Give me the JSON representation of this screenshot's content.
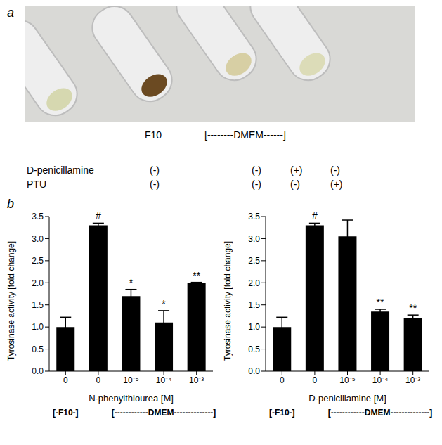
{
  "panel_a": {
    "label": "a",
    "medium_labels": [
      "F10",
      "[--------DMEM------]"
    ],
    "rows": [
      {
        "name": "D-penicillamine",
        "signs": [
          "(-)",
          "(-)",
          "(+)",
          "(-)"
        ]
      },
      {
        "name": "PTU",
        "signs": [
          "(-)",
          "(-)",
          "(-)",
          "(+)"
        ]
      }
    ]
  },
  "panel_b": {
    "label": "b"
  },
  "chart_data": [
    {
      "type": "bar",
      "y_label": "Tyrosinase activity [fold change]",
      "x_label": "N-phenylthiourea [M]",
      "medium_labels": [
        "[-F10-]",
        "[------------DMEM--------------]"
      ],
      "categories": [
        "0",
        "0",
        "10⁻⁵",
        "10⁻⁴",
        "10⁻³"
      ],
      "values": [
        1.0,
        3.3,
        1.7,
        1.1,
        2.0
      ],
      "errors": [
        0.22,
        0.05,
        0.15,
        0.27,
        0.01
      ],
      "annotations": [
        null,
        "#",
        "*",
        "*",
        "**"
      ],
      "color": "#000000",
      "ylim": [
        0,
        3.5
      ],
      "yticks": [
        {
          "value": 0,
          "label": "0.0"
        },
        {
          "value": 0.5,
          "label": "0.5"
        },
        {
          "value": 1,
          "label": "1.0"
        },
        {
          "value": 1.5,
          "label": "1.5"
        },
        {
          "value": 2,
          "label": "2.0"
        },
        {
          "value": 2.5,
          "label": "2.5"
        },
        {
          "value": 3,
          "label": "3.0"
        },
        {
          "value": 3.5,
          "label": "3.5"
        }
      ],
      "grid": false
    },
    {
      "type": "bar",
      "y_label": "Tyrosinase activity [fold change]",
      "x_label": "D-penicillamine [M]",
      "medium_labels": [
        "[-F10-]",
        "[------------DMEM--------------]"
      ],
      "categories": [
        "0",
        "0",
        "10⁻⁵",
        "10⁻⁴",
        "10⁻³"
      ],
      "values": [
        1.0,
        3.3,
        3.05,
        1.35,
        1.2
      ],
      "errors": [
        0.22,
        0.05,
        0.37,
        0.05,
        0.07
      ],
      "annotations": [
        null,
        "#",
        null,
        "**",
        "**"
      ],
      "color": "#000000",
      "ylim": [
        0,
        3.5
      ],
      "yticks": [
        {
          "value": 0,
          "label": "0.0"
        },
        {
          "value": 0.5,
          "label": "0.5"
        },
        {
          "value": 1,
          "label": "1.0"
        },
        {
          "value": 1.5,
          "label": "1.5"
        },
        {
          "value": 2,
          "label": "2.0"
        },
        {
          "value": 2.5,
          "label": "2.5"
        },
        {
          "value": 3,
          "label": "3.0"
        },
        {
          "value": 3.5,
          "label": "3.5"
        }
      ],
      "grid": false
    }
  ]
}
